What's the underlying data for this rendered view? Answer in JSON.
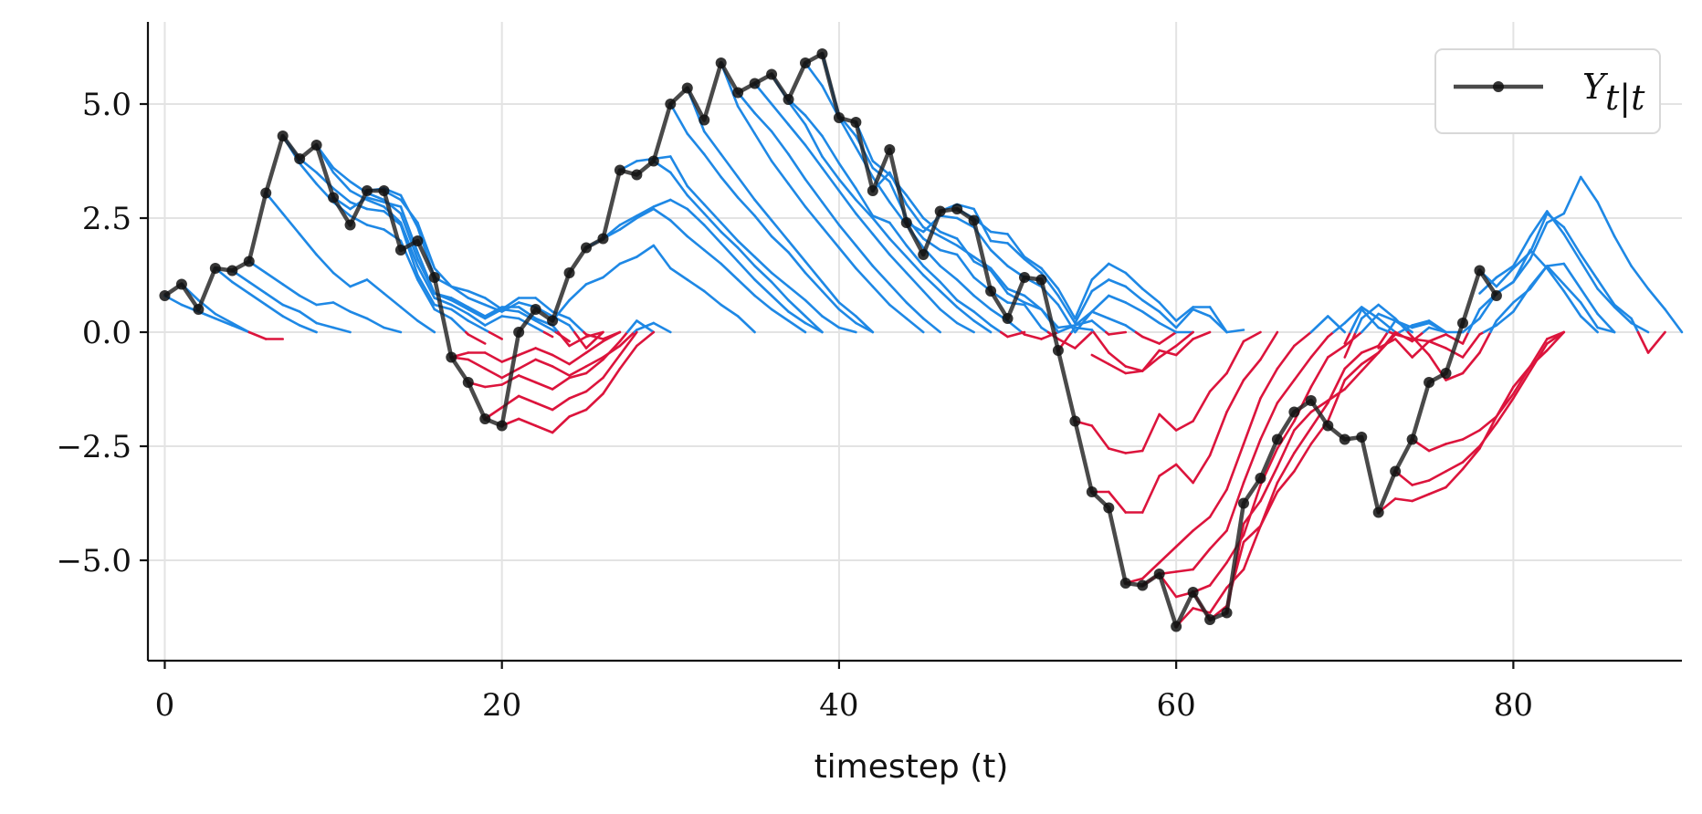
{
  "chart_data": {
    "type": "line",
    "xlabel": "timestep (t)",
    "ylabel": "",
    "xlim": [
      -1,
      90
    ],
    "ylim": [
      -7.2,
      6.8
    ],
    "xticks": [
      0,
      20,
      40,
      60,
      80
    ],
    "xtick_labels": [
      "0",
      "20",
      "40",
      "60",
      "80"
    ],
    "yticks": [
      -5.0,
      -2.5,
      0.0,
      2.5,
      5.0
    ],
    "ytick_labels": [
      "−5.0",
      "−2.5",
      "0.0",
      "2.5",
      "5.0"
    ],
    "grid": true,
    "legend": {
      "position": "top-right",
      "label": "Y",
      "subscript": "t|t"
    },
    "colors": {
      "observed": "#222222",
      "positive": "#1e88e5",
      "negative": "#dc143c",
      "grid": "#e3e3e3"
    },
    "observed": {
      "x": [
        0,
        1,
        2,
        3,
        4,
        5,
        6,
        7,
        8,
        9,
        10,
        11,
        12,
        13,
        14,
        15,
        16,
        17,
        18,
        19,
        20,
        21,
        22,
        23,
        24,
        25,
        26,
        27,
        28,
        29,
        30,
        31,
        32,
        33,
        34,
        35,
        36,
        37,
        38,
        39,
        40,
        41,
        42,
        43,
        44,
        45,
        46,
        47,
        48,
        49,
        50,
        51,
        52,
        53,
        54,
        55,
        56,
        57,
        58,
        59,
        60,
        61,
        62,
        63,
        64,
        65,
        66,
        67,
        68,
        69,
        70,
        71,
        72,
        73,
        74,
        75,
        76,
        77,
        78,
        79
      ],
      "y": [
        0.8,
        1.05,
        0.5,
        1.4,
        1.35,
        1.55,
        3.05,
        4.3,
        3.8,
        4.1,
        2.95,
        2.35,
        3.1,
        3.1,
        1.8,
        2.0,
        1.2,
        -0.55,
        -1.1,
        -1.9,
        -2.05,
        0.0,
        0.5,
        0.25,
        1.3,
        1.85,
        2.05,
        3.55,
        3.45,
        3.75,
        5.0,
        5.35,
        4.65,
        5.9,
        5.25,
        5.45,
        5.65,
        5.1,
        5.9,
        6.1,
        4.7,
        4.6,
        3.1,
        4.0,
        2.4,
        1.7,
        2.65,
        2.7,
        2.45,
        0.9,
        0.3,
        1.2,
        1.15,
        -0.4,
        -1.95,
        -3.5,
        -3.85,
        -5.5,
        -5.55,
        -5.3,
        -6.45,
        -5.7,
        -6.3,
        -6.15,
        -3.75,
        -3.2,
        -2.35,
        -1.75,
        -1.5,
        -2.05,
        -2.35,
        -2.3,
        -3.95,
        -3.05,
        -2.35,
        -1.1,
        -0.9,
        0.2,
        1.35,
        0.8
      ]
    },
    "series": [
      {
        "start": 0,
        "values": [
          0.8,
          0.6,
          0.45,
          0.3,
          0.15,
          0.0
        ]
      },
      {
        "start": 1,
        "values": [
          1.05,
          0.7,
          0.4,
          0.2,
          0.0,
          -0.15,
          -0.15
        ]
      },
      {
        "start": 3,
        "values": [
          1.4,
          1.1,
          0.85,
          0.6,
          0.35,
          0.15,
          0.0
        ]
      },
      {
        "start": 4,
        "values": [
          1.35,
          1.1,
          0.85,
          0.6,
          0.45,
          0.2,
          0.1,
          0.0
        ]
      },
      {
        "start": 5,
        "values": [
          1.55,
          1.3,
          1.05,
          0.8,
          0.6,
          0.65,
          0.45,
          0.3,
          0.1,
          0.0
        ]
      },
      {
        "start": 6,
        "values": [
          3.05,
          2.6,
          2.15,
          1.7,
          1.3,
          1.0,
          1.15,
          0.85,
          0.55,
          0.25,
          0.0
        ]
      },
      {
        "start": 7,
        "values": [
          4.3,
          3.7,
          3.25,
          2.85,
          2.55,
          2.35,
          2.25,
          2.0,
          1.15,
          0.5,
          0.3,
          -0.05,
          -0.25
        ]
      },
      {
        "start": 7,
        "values": [
          4.3,
          3.8,
          3.5,
          3.15,
          2.85,
          2.7,
          2.65,
          2.35,
          1.25,
          0.6,
          0.5,
          0.25,
          0.05,
          -0.15
        ]
      },
      {
        "start": 9,
        "values": [
          4.1,
          3.5,
          3.1,
          2.9,
          2.75,
          2.4,
          1.45,
          0.75,
          0.6,
          0.4,
          0.15,
          0.35,
          0.3,
          0.1,
          -0.1
        ]
      },
      {
        "start": 9,
        "values": [
          4.1,
          3.6,
          3.3,
          3.05,
          2.9,
          2.6,
          1.6,
          0.85,
          0.7,
          0.5,
          0.3,
          0.5,
          0.45,
          0.25,
          0.05,
          -0.2
        ]
      },
      {
        "start": 10,
        "values": [
          2.95,
          2.7,
          2.95,
          2.85,
          2.75,
          1.75,
          0.85,
          0.75,
          0.55,
          0.35,
          0.55,
          0.55,
          0.3,
          0.15,
          -0.3,
          -0.1,
          0.0
        ]
      },
      {
        "start": 12,
        "values": [
          3.1,
          3.15,
          3.0,
          2.3,
          1.2,
          1.0,
          0.9,
          0.75,
          0.5,
          0.75,
          0.75,
          0.45,
          0.3,
          -0.05,
          -0.15,
          0.0
        ]
      },
      {
        "start": 13,
        "values": [
          3.1,
          2.9,
          2.4,
          1.4,
          1.0,
          0.75,
          0.6,
          0.45,
          0.65,
          0.55,
          0.35,
          0.15,
          -0.35,
          0.0
        ]
      },
      {
        "start": 17,
        "values": [
          -0.55,
          -0.45,
          -0.45,
          -0.65,
          -0.5,
          -0.35,
          -0.5,
          -0.7,
          -0.45,
          -0.2,
          0.0
        ]
      },
      {
        "start": 17,
        "values": [
          -0.55,
          -0.6,
          -0.8,
          -1.0,
          -0.8,
          -0.6,
          -0.75,
          -0.95,
          -0.75,
          -0.55,
          -0.3,
          0.05,
          0.2,
          0.0
        ]
      },
      {
        "start": 18,
        "values": [
          -1.1,
          -1.2,
          -1.15,
          -0.95,
          -1.1,
          -1.25,
          -1.0,
          -0.9,
          -0.6,
          -0.2,
          0.25,
          0.0
        ]
      },
      {
        "start": 19,
        "values": [
          -1.9,
          -1.65,
          -1.4,
          -1.55,
          -1.7,
          -1.45,
          -1.3,
          -1.0,
          -0.5,
          0.0
        ]
      },
      {
        "start": 20,
        "values": [
          -2.05,
          -1.9,
          -2.05,
          -2.2,
          -1.85,
          -1.7,
          -1.35,
          -0.8,
          -0.3,
          0.0
        ]
      },
      {
        "start": 23,
        "values": [
          0.25,
          0.7,
          1.05,
          1.2,
          1.5,
          1.65,
          1.9,
          1.4,
          1.15,
          0.9,
          0.6,
          0.35,
          0.0
        ]
      },
      {
        "start": 25,
        "values": [
          1.85,
          2.05,
          2.25,
          2.5,
          2.7,
          2.45,
          2.1,
          1.8,
          1.5,
          1.15,
          0.8,
          0.5,
          0.25,
          0.0
        ]
      },
      {
        "start": 26,
        "values": [
          2.05,
          2.35,
          2.55,
          2.75,
          2.9,
          2.7,
          2.35,
          1.95,
          1.55,
          1.15,
          0.8,
          0.45,
          0.2,
          0.0
        ]
      },
      {
        "start": 27,
        "values": [
          3.55,
          3.75,
          3.8,
          3.85,
          3.2,
          2.8,
          2.4,
          2.0,
          1.65,
          1.3,
          1.0,
          0.7,
          0.35,
          0.1,
          0.0
        ]
      },
      {
        "start": 29,
        "values": [
          3.75,
          3.5,
          3.0,
          2.6,
          2.2,
          1.85,
          1.45,
          1.1,
          0.7,
          0.35,
          0.0
        ]
      },
      {
        "start": 30,
        "values": [
          5.0,
          4.35,
          3.9,
          3.4,
          2.95,
          2.55,
          2.1,
          1.75,
          1.3,
          0.9,
          0.5,
          0.2,
          0.0
        ]
      },
      {
        "start": 31,
        "values": [
          5.35,
          4.4,
          3.9,
          3.4,
          2.9,
          2.45,
          2.0,
          1.55,
          1.1,
          0.65,
          0.35,
          0.0
        ]
      },
      {
        "start": 33,
        "values": [
          5.9,
          4.95,
          4.35,
          3.75,
          3.25,
          2.75,
          2.3,
          1.85,
          1.4,
          1.0,
          0.6,
          0.3,
          0.0
        ]
      },
      {
        "start": 34,
        "values": [
          5.25,
          4.8,
          4.4,
          3.9,
          3.35,
          2.85,
          2.35,
          1.9,
          1.45,
          1.05,
          0.65,
          0.3,
          0.0
        ]
      },
      {
        "start": 35,
        "values": [
          5.45,
          5.0,
          4.55,
          4.1,
          3.6,
          3.1,
          2.6,
          2.15,
          1.7,
          1.3,
          0.9,
          0.5,
          0.2,
          0.0
        ]
      },
      {
        "start": 36,
        "values": [
          5.65,
          5.05,
          4.55,
          3.85,
          3.35,
          2.9,
          2.5,
          2.05,
          1.65,
          1.25,
          0.9,
          0.55,
          0.25,
          0.0
        ]
      },
      {
        "start": 37,
        "values": [
          5.1,
          4.75,
          4.3,
          3.7,
          3.15,
          2.55,
          2.4,
          1.9,
          1.45,
          1.1,
          0.7,
          0.45,
          0.15,
          -0.1,
          0.0
        ]
      },
      {
        "start": 38,
        "values": [
          5.9,
          5.4,
          4.7,
          4.05,
          3.4,
          2.85,
          2.35,
          1.85,
          1.45,
          1.15,
          0.8,
          0.5,
          0.25,
          -0.05,
          -0.15,
          0.0
        ]
      },
      {
        "start": 39,
        "values": [
          6.1,
          4.75,
          4.3,
          3.6,
          3.3,
          2.5,
          2.05,
          1.8,
          1.7,
          1.2,
          0.9,
          0.65,
          0.6,
          0.1,
          -0.15,
          -0.35,
          0.0
        ]
      },
      {
        "start": 41,
        "values": [
          4.6,
          3.75,
          3.45,
          3.0,
          2.5,
          2.2,
          2.05,
          1.55,
          1.35,
          0.85,
          0.65,
          0.5,
          0.1,
          0.15,
          0.25,
          -0.05,
          0.0
        ]
      },
      {
        "start": 42,
        "values": [
          3.1,
          3.5,
          2.8,
          2.3,
          2.1,
          1.9,
          1.65,
          1.4,
          0.95,
          0.8,
          0.5,
          0.0,
          0.15,
          0.45,
          0.3,
          0.15,
          -0.1,
          -0.25,
          0.0
        ]
      },
      {
        "start": 44,
        "values": [
          2.4,
          2.2,
          2.55,
          2.5,
          2.3,
          1.8,
          1.45,
          1.2,
          1.0,
          0.6,
          0.0,
          0.45,
          0.8,
          0.65,
          0.45,
          0.2,
          0.0,
          0.0
        ]
      },
      {
        "start": 46,
        "values": [
          2.65,
          2.8,
          2.7,
          2.0,
          1.95,
          1.6,
          1.3,
          0.8,
          0.2,
          0.9,
          1.15,
          1.0,
          0.7,
          0.45,
          0.1,
          0.5,
          0.35,
          0.0
        ]
      },
      {
        "start": 47,
        "values": [
          2.7,
          2.5,
          2.2,
          2.15,
          1.65,
          1.4,
          0.95,
          0.3,
          1.15,
          1.5,
          1.3,
          0.95,
          0.65,
          0.25,
          0.55,
          0.55,
          0.0,
          0.05
        ]
      },
      {
        "start": 53,
        "values": [
          -0.4,
          0.1,
          0.05,
          -0.45,
          -0.75,
          -0.85,
          -0.55,
          -0.3,
          0.0
        ]
      },
      {
        "start": 55,
        "values": [
          -0.5,
          -0.7,
          -0.9,
          -0.85,
          -0.4,
          -0.5,
          -0.15,
          0.0
        ]
      },
      {
        "start": 54,
        "values": [
          -1.95,
          -2.05,
          -2.55,
          -2.65,
          -2.6,
          -1.8,
          -2.15,
          -1.95,
          -1.3,
          -0.9,
          -0.2,
          0.0
        ]
      },
      {
        "start": 55,
        "values": [
          -3.5,
          -3.5,
          -3.95,
          -3.95,
          -3.15,
          -2.9,
          -3.3,
          -2.7,
          -1.75,
          -1.05,
          -0.6,
          0.0
        ]
      },
      {
        "start": 57,
        "values": [
          -5.5,
          -5.4,
          -5.05,
          -4.7,
          -4.35,
          -4.05,
          -3.45,
          -2.45,
          -1.45,
          -0.8,
          -0.3,
          0.0,
          0.35,
          0.0
        ]
      },
      {
        "start": 58,
        "values": [
          -5.55,
          -5.3,
          -5.25,
          -5.2,
          -4.75,
          -4.35,
          -3.3,
          -2.35,
          -1.55,
          -1.05,
          -0.55,
          -0.1,
          0.2,
          0.55,
          0.3,
          0.0
        ]
      },
      {
        "start": 59,
        "values": [
          -5.3,
          -5.8,
          -5.7,
          -5.55,
          -5.05,
          -4.45,
          -3.35,
          -2.55,
          -1.95,
          -1.2,
          -0.55,
          -0.3,
          0.0,
          0.4,
          0.25,
          0.0
        ]
      },
      {
        "start": 60,
        "values": [
          -6.45,
          -6.05,
          -6.15,
          -5.6,
          -5.2,
          -4.25,
          -3.3,
          -2.65,
          -2.1,
          -1.55,
          -0.8,
          -0.45,
          -0.3,
          0.25,
          0.1,
          0.2,
          0.0
        ]
      },
      {
        "start": 61,
        "values": [
          -5.7,
          -6.3,
          -6.0,
          -4.6,
          -4.25,
          -3.5,
          -3.05,
          -2.45,
          -1.95,
          -1.05,
          -0.7,
          -0.45,
          0.0,
          -0.2,
          0.1,
          0.0
        ]
      },
      {
        "start": 63,
        "values": [
          -6.15,
          -4.2,
          -3.7,
          -2.95,
          -2.15,
          -1.75,
          -1.5,
          -1.25,
          -0.85,
          -0.45,
          -0.05,
          0.15,
          0.25,
          0.0,
          0.0
        ]
      },
      {
        "start": 72,
        "values": [
          -3.95,
          -3.65,
          -3.7,
          -3.55,
          -3.4,
          -3.0,
          -2.55,
          -1.85,
          -1.2,
          -0.75,
          -0.4,
          0.0
        ]
      },
      {
        "start": 73,
        "values": [
          -3.05,
          -3.35,
          -3.25,
          -3.05,
          -2.85,
          -2.5,
          -2.0,
          -1.45,
          -0.85,
          -0.25,
          0.0
        ]
      },
      {
        "start": 74,
        "values": [
          -2.35,
          -2.6,
          -2.45,
          -2.35,
          -2.15,
          -1.85,
          -1.35,
          -0.75,
          -0.15,
          0.0
        ]
      },
      {
        "start": 72,
        "values": [
          -0.35,
          -0.15,
          -0.55,
          -0.2,
          -0.35,
          -0.55,
          -0.05,
          0.15,
          0.45,
          1.0,
          1.45,
          1.5,
          0.95,
          0.4,
          0.0
        ]
      },
      {
        "start": 70,
        "values": [
          -0.25,
          0.5,
          0.1,
          -0.05,
          -0.15,
          -0.2,
          -0.05,
          -0.25,
          0.5,
          0.85,
          1.1,
          1.8,
          1.4,
          0.9,
          0.35,
          0.0
        ]
      },
      {
        "start": 70,
        "values": [
          -0.55,
          0.3,
          0.6,
          0.3,
          -0.1,
          -0.5,
          -1.05,
          -0.9,
          -0.45,
          0.25,
          0.65,
          0.95,
          1.45,
          1.05,
          0.65,
          0.1,
          0.0
        ]
      },
      {
        "start": 77,
        "values": [
          0.0,
          0.3,
          0.85,
          1.1,
          1.6,
          2.4,
          2.6,
          3.4,
          2.85,
          2.1,
          1.45,
          0.95,
          0.5,
          0.0
        ]
      },
      {
        "start": 78,
        "values": [
          0.85,
          1.2,
          1.45,
          2.1,
          2.65,
          2.15,
          1.55,
          0.95,
          0.55,
          0.2,
          0.0
        ]
      },
      {
        "start": 78,
        "values": [
          1.35,
          1.0,
          1.4,
          1.75,
          2.6,
          2.3,
          1.7,
          1.15,
          0.6,
          0.3,
          -0.45,
          0.0
        ]
      }
    ]
  }
}
